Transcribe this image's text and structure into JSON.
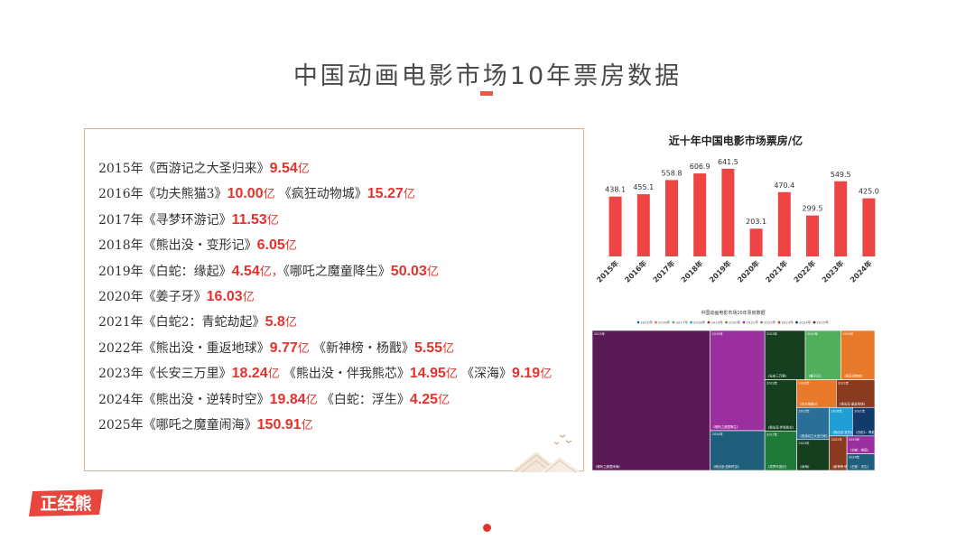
{
  "page": {
    "title": "中国动画电影市场10年票房数据",
    "logo_text": "正经熊"
  },
  "list": {
    "rows": [
      {
        "year": "2015年",
        "films": [
          {
            "name": "《西游记之大圣归来》",
            "amount": "9.54",
            "unit": "亿"
          }
        ]
      },
      {
        "year": "2016年",
        "films": [
          {
            "name": "《功夫熊猫3》",
            "amount": "10.00",
            "unit": "亿"
          },
          {
            "name": "《疯狂动物城》",
            "amount": "15.27",
            "unit": "亿"
          }
        ]
      },
      {
        "year": "2017年",
        "films": [
          {
            "name": "《寻梦环游记》",
            "amount": "11.53",
            "unit": "亿"
          }
        ]
      },
      {
        "year": "2018年",
        "films": [
          {
            "name": "《熊出没・变形记》",
            "amount": "6.05",
            "unit": "亿"
          }
        ]
      },
      {
        "year": "2019年",
        "films": [
          {
            "name": "《白蛇：缘起》",
            "amount": "4.54",
            "unit": "亿，",
            "sep": ""
          },
          {
            "name": "《哪吒之魔童降生》",
            "amount": "50.03",
            "unit": "亿"
          }
        ]
      },
      {
        "year": "2020年",
        "films": [
          {
            "name": "《姜子牙》",
            "amount": "16.03",
            "unit": "亿"
          }
        ]
      },
      {
        "year": "2021年",
        "films": [
          {
            "name": "《白蛇2：青蛇劫起》",
            "amount": "5.8",
            "unit": "亿"
          }
        ]
      },
      {
        "year": "2022年",
        "films": [
          {
            "name": "《熊出没・重返地球》",
            "amount": "9.77",
            "unit": "亿"
          },
          {
            "name": "《新神榜・杨戬》",
            "amount": "5.55",
            "unit": "亿"
          }
        ]
      },
      {
        "year": "2023年",
        "films": [
          {
            "name": "《长安三万里》",
            "amount": "18.24",
            "unit": "亿"
          },
          {
            "name": "《熊出没・伴我熊芯》",
            "amount": "14.95",
            "unit": "亿"
          },
          {
            "name": "《深海》",
            "amount": "9.19",
            "unit": "亿"
          }
        ]
      },
      {
        "year": "2024年",
        "films": [
          {
            "name": "《熊出没・逆转时空》",
            "amount": "19.84",
            "unit": "亿"
          },
          {
            "name": "《白蛇：浮生》",
            "amount": "4.25",
            "unit": "亿"
          }
        ]
      },
      {
        "year": "2025年",
        "films": [
          {
            "name": "《哪吒之魔童闹海》",
            "amount": "150.91",
            "unit": "亿"
          }
        ]
      }
    ]
  },
  "chart_data": [
    {
      "type": "bar",
      "title": "近十年中国电影市场票房/亿",
      "categories": [
        "2015年",
        "2016年",
        "2017年",
        "2018年",
        "2019年",
        "2020年",
        "2021年",
        "2022年",
        "2023年",
        "2024年"
      ],
      "values": [
        438.1,
        455.1,
        558.8,
        606.9,
        641.5,
        203.1,
        470.4,
        299.5,
        549.5,
        425.0
      ],
      "data_labels": [
        "438.1",
        "455.1",
        "558.8",
        "606.9",
        "641.5",
        "203.1",
        "470.4",
        "299.5",
        "549.5",
        "425.0"
      ],
      "color": "#ef4444",
      "ylim": [
        0,
        700
      ],
      "grid": false
    },
    {
      "type": "treemap",
      "title": "中国动画电影市场10年票房数据",
      "legend": [
        "2015年",
        "2016年",
        "2017年",
        "2018年",
        "2019年",
        "2020年",
        "2021年",
        "2022年",
        "2023年",
        "2024年",
        "2025年"
      ],
      "legend_colors": [
        "#1f6f8b",
        "#e8792a",
        "#52b05c",
        "#1f9fd6",
        "#8a3a1e",
        "#6b7d2a",
        "#9b2fa0",
        "#7a7a7a",
        "#c23b2a",
        "#123a6b",
        "#5a1a55"
      ],
      "items": [
        {
          "year": "2025年",
          "name": "《哪吒之魔童闹海》",
          "value": 150.91,
          "color": "#5a1a55"
        },
        {
          "year": "2019年",
          "name": "《哪吒之魔童降生》",
          "value": 50.03,
          "color": "#9b2fa0"
        },
        {
          "year": "2019年",
          "name": "《白蛇：缘起》",
          "value": 4.54,
          "color": "#9b2fa0"
        },
        {
          "year": "2023年",
          "name": "《长安三万里》",
          "value": 18.24,
          "color": "#153f1f"
        },
        {
          "year": "2023年",
          "name": "《熊出没·伴我熊芯》",
          "value": 14.95,
          "color": "#153f1f"
        },
        {
          "year": "2023年",
          "name": "《深海》",
          "value": 9.19,
          "color": "#153f1f"
        },
        {
          "year": "2016年",
          "name": "《疯狂动物城》",
          "value": 15.27,
          "color": "#e8792a"
        },
        {
          "year": "2016年",
          "name": "《功夫熊猫3》",
          "value": 10.0,
          "color": "#e8792a"
        },
        {
          "year": "2024年",
          "name": "《熊出没·逆转时空》",
          "value": 19.84,
          "color": "#1f5f7b"
        },
        {
          "year": "2024年",
          "name": "《白蛇：浮生》",
          "value": 4.25,
          "color": "#1f5f7b"
        },
        {
          "year": "2020年",
          "name": "《姜子牙》",
          "value": 16.03,
          "color": "#52b05c"
        },
        {
          "year": "2017年",
          "name": "《寻梦环游记》",
          "value": 11.53,
          "color": "#1f7a3a"
        },
        {
          "year": "2022年",
          "name": "《熊出没·重返地球》",
          "value": 9.77,
          "color": "#8a3a1e"
        },
        {
          "year": "2022年",
          "name": "《新神榜·杨戬》",
          "value": 5.55,
          "color": "#8a3a1e"
        },
        {
          "year": "2015年",
          "name": "《西游记之大圣归来》",
          "value": 9.54,
          "color": "#2a6f97"
        },
        {
          "year": "2018年",
          "name": "《熊出没·变形记》",
          "value": 6.05,
          "color": "#1f9fd6"
        },
        {
          "year": "2021年",
          "name": "《白蛇2：青蛇劫起》",
          "value": 5.8,
          "color": "#123a6b"
        }
      ]
    }
  ]
}
